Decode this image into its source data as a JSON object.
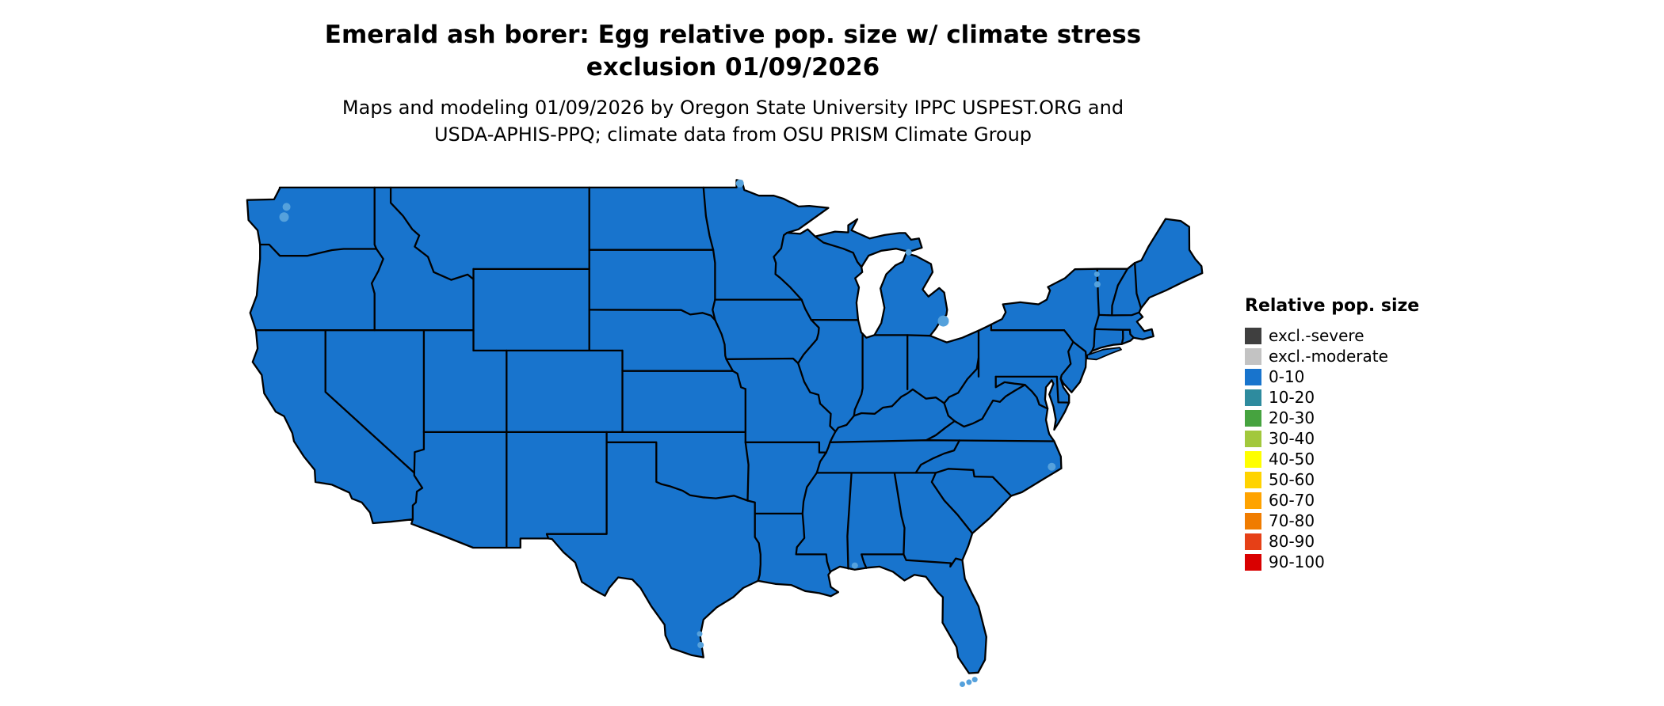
{
  "title": {
    "line1": "Emerald ash borer: Egg relative pop. size w/ climate stress",
    "line2": "exclusion 01/09/2026"
  },
  "subtitle": {
    "line1": "Maps and modeling 01/09/2026 by Oregon State University IPPC USPEST.ORG and",
    "line2": "USDA-APHIS-PPQ; climate data from OSU PRISM Climate Group"
  },
  "legend": {
    "title": "Relative pop. size",
    "items": [
      {
        "label": "excl.-severe",
        "color": "#3F3F3F"
      },
      {
        "label": "excl.-moderate",
        "color": "#C3C3C3"
      },
      {
        "label": "0-10",
        "color": "#1874CD"
      },
      {
        "label": "10-20",
        "color": "#2E8B9E"
      },
      {
        "label": "20-30",
        "color": "#46A33F"
      },
      {
        "label": "30-40",
        "color": "#A2C83C"
      },
      {
        "label": "40-50",
        "color": "#FFFF00"
      },
      {
        "label": "50-60",
        "color": "#FFD300"
      },
      {
        "label": "60-70",
        "color": "#FFA300"
      },
      {
        "label": "70-80",
        "color": "#F07C00"
      },
      {
        "label": "80-90",
        "color": "#E64017"
      },
      {
        "label": "90-100",
        "color": "#D90000"
      }
    ]
  },
  "map": {
    "type": "choropleth",
    "region": "contiguous United States",
    "uniform_value_class": "0-10",
    "fill_color": "#1874CD",
    "border_color": "#000000",
    "water_mark_color": "#55A1DC",
    "background_color": "#FFFFFF"
  }
}
